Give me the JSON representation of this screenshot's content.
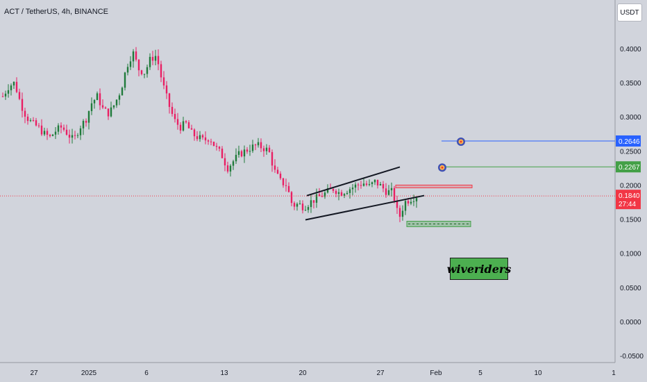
{
  "header": {
    "title": "ACT / TetherUS, 4h, BINANCE"
  },
  "currency_button": "USDT",
  "watermark": "wiveriders",
  "colors": {
    "background": "#d1d4dc",
    "bull": "#26a69a",
    "bull_dark": "#1f7a3a",
    "bear": "#e91e63",
    "target_blue": "#2962ff",
    "target_green": "#43a047",
    "price_red": "#f23645"
  },
  "chart_data": {
    "type": "candlestick",
    "title": "ACT / TetherUS, 4h, BINANCE",
    "ylim": [
      -0.06,
      0.44
    ],
    "y_ticks": [
      "0.4000",
      "0.3500",
      "0.3000",
      "0.2500",
      "0.2000",
      "0.1500",
      "0.1000",
      "0.0500",
      "0.0000",
      "-0.0500"
    ],
    "y_tick_values": [
      0.4,
      0.35,
      0.3,
      0.25,
      0.2,
      0.15,
      0.1,
      0.05,
      0.0,
      -0.05
    ],
    "x_ticks": [
      "27",
      "2025",
      "6",
      "13",
      "20",
      "27",
      "Feb",
      "5",
      "10",
      "1"
    ],
    "price_path": [
      [
        0,
        0.33
      ],
      [
        1,
        0.345
      ],
      [
        2,
        0.35
      ],
      [
        3,
        0.32
      ],
      [
        4,
        0.3
      ],
      [
        5,
        0.29
      ],
      [
        6,
        0.285
      ],
      [
        7,
        0.275
      ],
      [
        8,
        0.27
      ],
      [
        9,
        0.28
      ],
      [
        10,
        0.285
      ],
      [
        11,
        0.275
      ],
      [
        12,
        0.265
      ],
      [
        13,
        0.285
      ],
      [
        14,
        0.295
      ],
      [
        15,
        0.32
      ],
      [
        16,
        0.33
      ],
      [
        17,
        0.31
      ],
      [
        18,
        0.305
      ],
      [
        19,
        0.32
      ],
      [
        20,
        0.34
      ],
      [
        21,
        0.375
      ],
      [
        22,
        0.395
      ],
      [
        23,
        0.37
      ],
      [
        24,
        0.365
      ],
      [
        25,
        0.385
      ],
      [
        26,
        0.39
      ],
      [
        27,
        0.35
      ],
      [
        28,
        0.32
      ],
      [
        29,
        0.295
      ],
      [
        30,
        0.285
      ],
      [
        31,
        0.29
      ],
      [
        32,
        0.275
      ],
      [
        33,
        0.27
      ],
      [
        34,
        0.265
      ],
      [
        35,
        0.27
      ],
      [
        36,
        0.255
      ],
      [
        37,
        0.245
      ],
      [
        38,
        0.225
      ],
      [
        39,
        0.235
      ],
      [
        40,
        0.245
      ],
      [
        41,
        0.25
      ],
      [
        42,
        0.255
      ],
      [
        43,
        0.258
      ],
      [
        44,
        0.255
      ],
      [
        45,
        0.25
      ],
      [
        46,
        0.22
      ],
      [
        47,
        0.205
      ],
      [
        48,
        0.2
      ],
      [
        49,
        0.17
      ],
      [
        50,
        0.172
      ],
      [
        51,
        0.168
      ],
      [
        52,
        0.175
      ],
      [
        53,
        0.18
      ],
      [
        54,
        0.185
      ],
      [
        55,
        0.19
      ],
      [
        56,
        0.195
      ],
      [
        57,
        0.188
      ],
      [
        58,
        0.192
      ],
      [
        59,
        0.196
      ],
      [
        60,
        0.2
      ],
      [
        61,
        0.203
      ],
      [
        62,
        0.198
      ],
      [
        63,
        0.205
      ],
      [
        64,
        0.198
      ],
      [
        65,
        0.19
      ],
      [
        66,
        0.19
      ],
      [
        67,
        0.15
      ],
      [
        68,
        0.175
      ],
      [
        69,
        0.18
      ],
      [
        70,
        0.184
      ]
    ],
    "current_price": "0.1840",
    "countdown": "27:44",
    "targets": [
      {
        "label": "0.2646",
        "value": 0.2646,
        "color": "#2962ff"
      },
      {
        "label": "0.2267",
        "value": 0.2267,
        "color": "#43a047"
      }
    ],
    "channel": {
      "upper": [
        [
          0.1845,
          0.2023
        ],
        [
          0.2265,
          0.2005
        ]
      ],
      "lower": [
        [
          0.149,
          0.1965
        ],
        [
          0.1846,
          0.2012
        ]
      ]
    },
    "resistance_zone": [
      0.196,
      0.2
    ],
    "support_zone": [
      0.139,
      0.147
    ]
  }
}
